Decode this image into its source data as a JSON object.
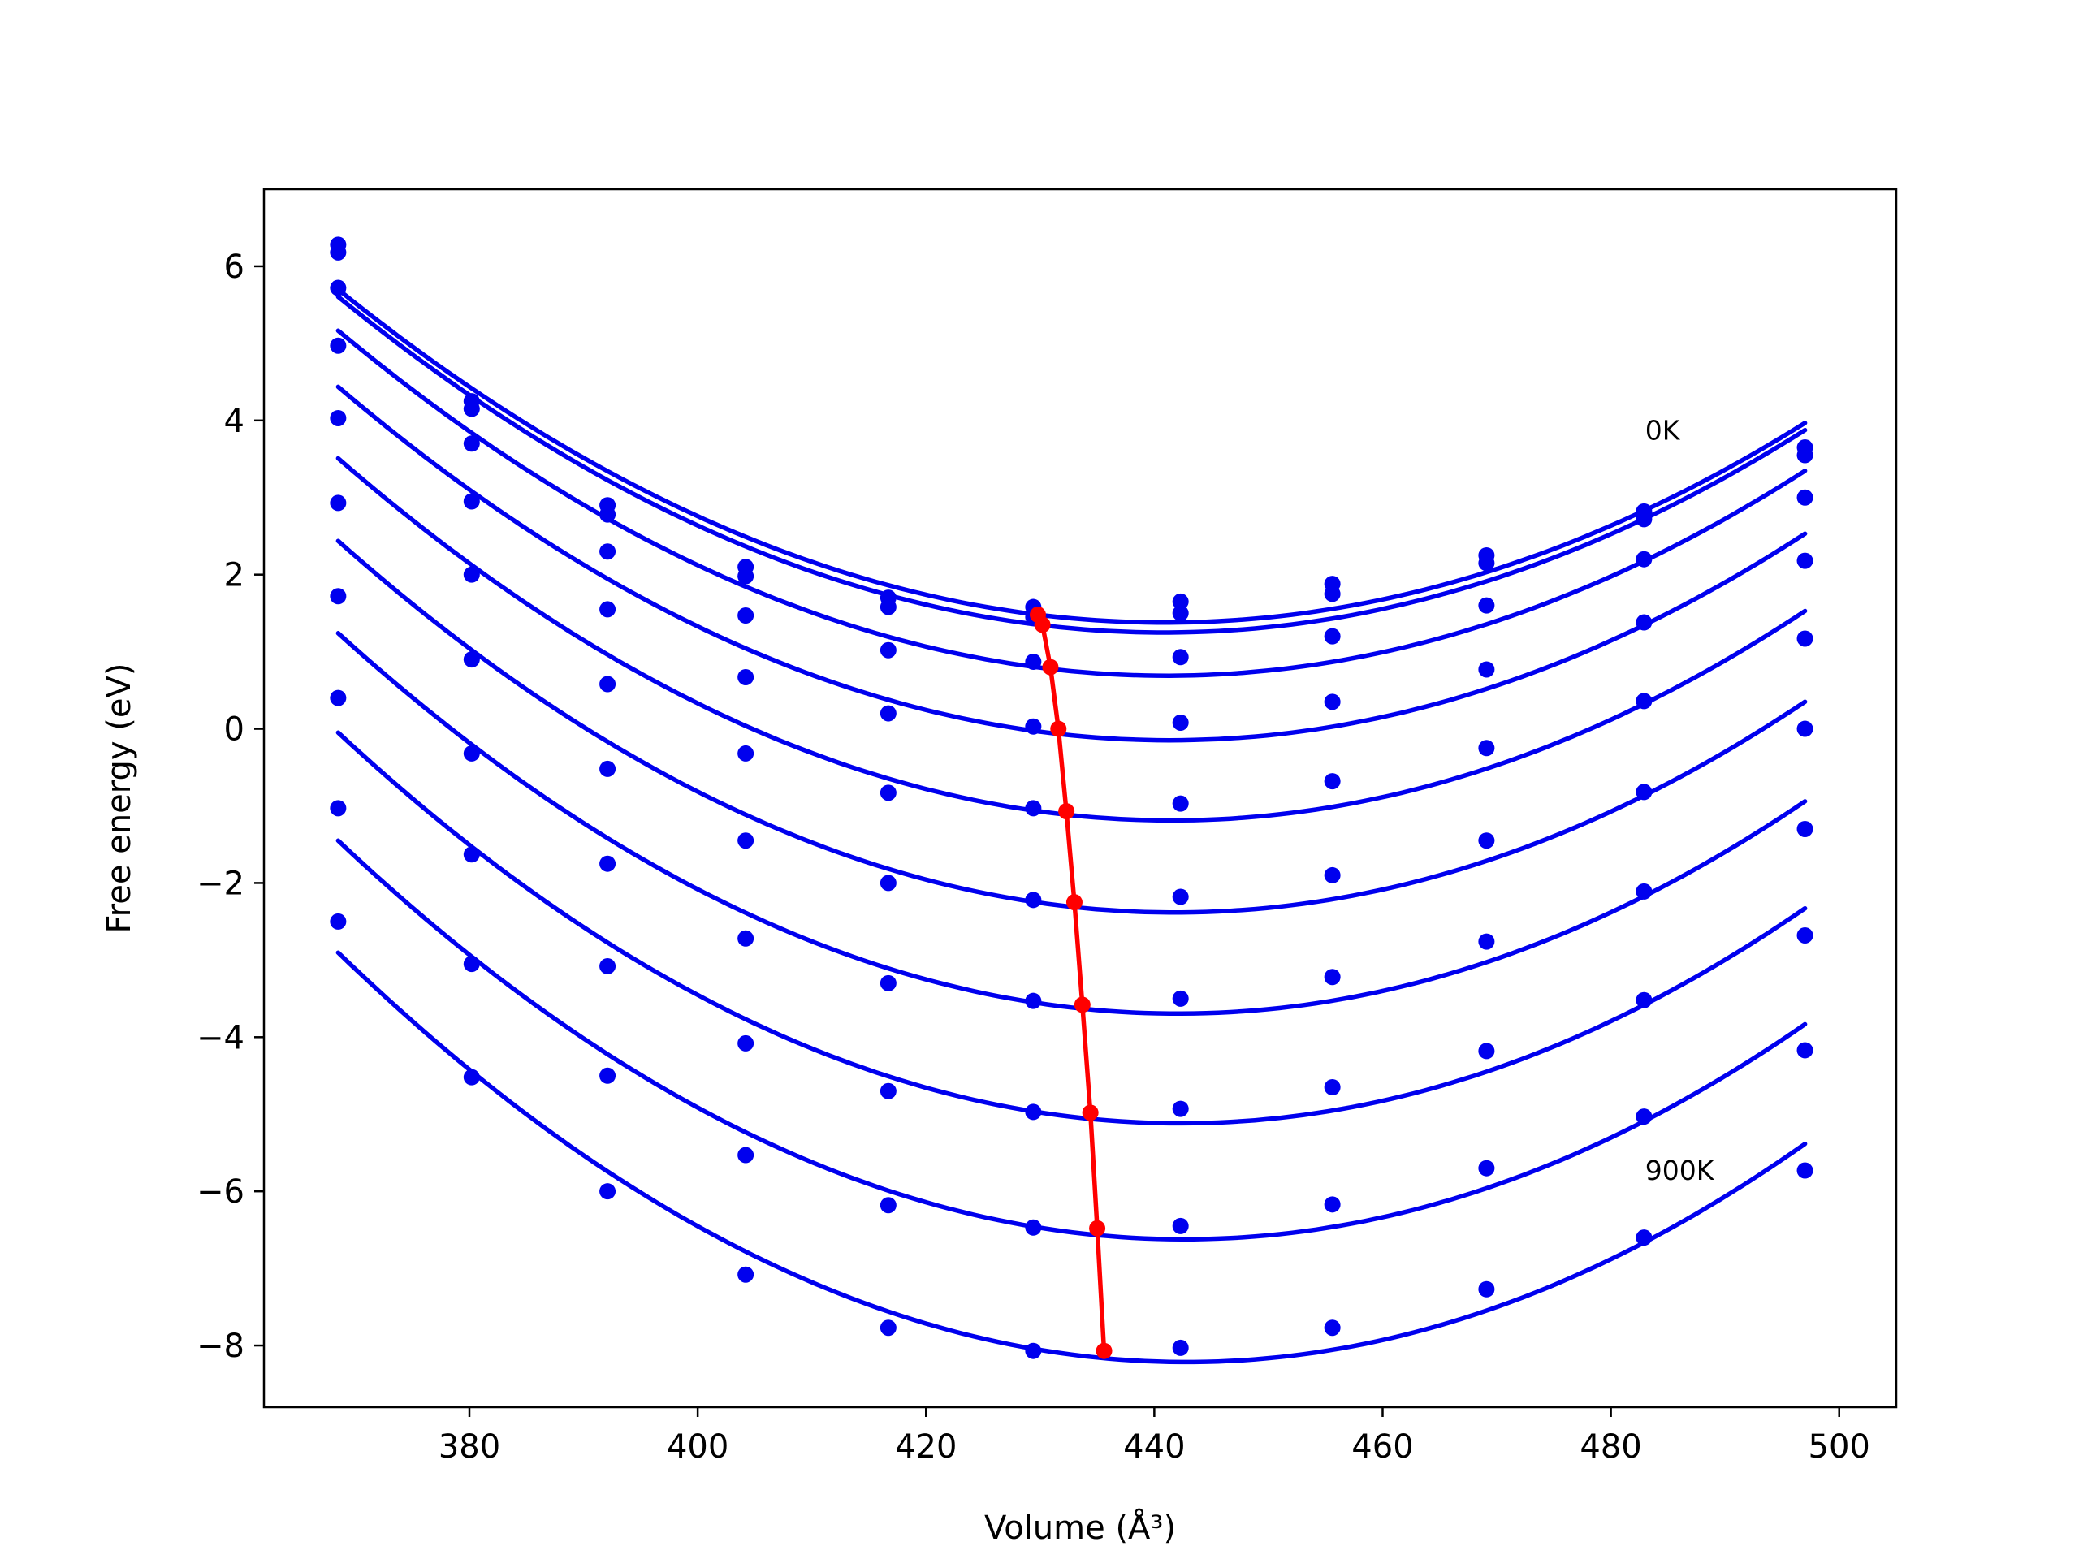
{
  "chart_data": {
    "type": "line",
    "xlabel": "Volume (Å³)",
    "ylabel": "Free energy (eV)",
    "xlim": [
      362,
      505
    ],
    "ylim": [
      -8.8,
      7.0
    ],
    "xticks": [
      380,
      400,
      420,
      440,
      460,
      480,
      500
    ],
    "yticks": [
      -8,
      -6,
      -4,
      -2,
      0,
      2,
      4,
      6
    ],
    "ytick_labels": [
      "−8",
      "−6",
      "−4",
      "−2",
      "0",
      "2",
      "4",
      "6"
    ],
    "grid": false,
    "colors": {
      "curves": "#0000ee",
      "minimum_path": "#ff0000"
    },
    "annotations": [
      {
        "text": "0K",
        "x": 483,
        "y": 3.75
      },
      {
        "text": "900K",
        "x": 483,
        "y": -5.85
      }
    ],
    "volumes": [
      368.5,
      380.2,
      392.1,
      404.2,
      416.7,
      429.4,
      442.3,
      455.6,
      469.1,
      482.9,
      497.0
    ],
    "series": [
      {
        "values": [
          6.28,
          4.25,
          2.9,
          2.1,
          1.7,
          1.58,
          1.65,
          1.88,
          2.25,
          2.82,
          3.65
        ]
      },
      {
        "values": [
          6.18,
          4.15,
          2.78,
          1.98,
          1.58,
          1.45,
          1.5,
          1.75,
          2.15,
          2.72,
          3.55
        ]
      },
      {
        "values": [
          5.72,
          3.7,
          2.3,
          1.47,
          1.02,
          0.87,
          0.93,
          1.2,
          1.6,
          2.2,
          3.0
        ]
      },
      {
        "values": [
          4.97,
          2.95,
          1.55,
          0.67,
          0.2,
          0.03,
          0.08,
          0.35,
          0.77,
          1.38,
          2.18
        ]
      },
      {
        "values": [
          4.03,
          2.0,
          0.58,
          -0.32,
          -0.83,
          -1.03,
          -0.97,
          -0.68,
          -0.25,
          0.36,
          1.17
        ]
      },
      {
        "values": [
          2.93,
          0.9,
          -0.52,
          -1.45,
          -2.0,
          -2.22,
          -2.18,
          -1.9,
          -1.45,
          -0.82,
          0.0
        ]
      },
      {
        "values": [
          1.72,
          -0.32,
          -1.75,
          -2.72,
          -3.3,
          -3.53,
          -3.5,
          -3.22,
          -2.76,
          -2.11,
          -1.3
        ]
      },
      {
        "values": [
          0.4,
          -1.63,
          -3.08,
          -4.08,
          -4.7,
          -4.97,
          -4.93,
          -4.65,
          -4.18,
          -3.52,
          -2.68
        ]
      },
      {
        "values": [
          -1.03,
          -3.05,
          -4.5,
          -5.53,
          -6.18,
          -6.47,
          -6.45,
          -6.17,
          -5.7,
          -5.03,
          -4.17
        ]
      },
      {
        "values": [
          -2.5,
          -4.52,
          -6.0,
          -7.08,
          -7.77,
          -8.07,
          -8.03,
          -7.77,
          -7.27,
          -6.6,
          -5.73
        ]
      }
    ],
    "minimum_path": {
      "x": [
        429.8,
        430.2,
        430.9,
        431.6,
        432.3,
        433.0,
        433.7,
        434.4,
        435.0,
        435.6
      ],
      "y": [
        1.48,
        1.35,
        0.8,
        0.0,
        -1.07,
        -2.25,
        -3.58,
        -4.98,
        -6.48,
        -8.07
      ]
    }
  }
}
